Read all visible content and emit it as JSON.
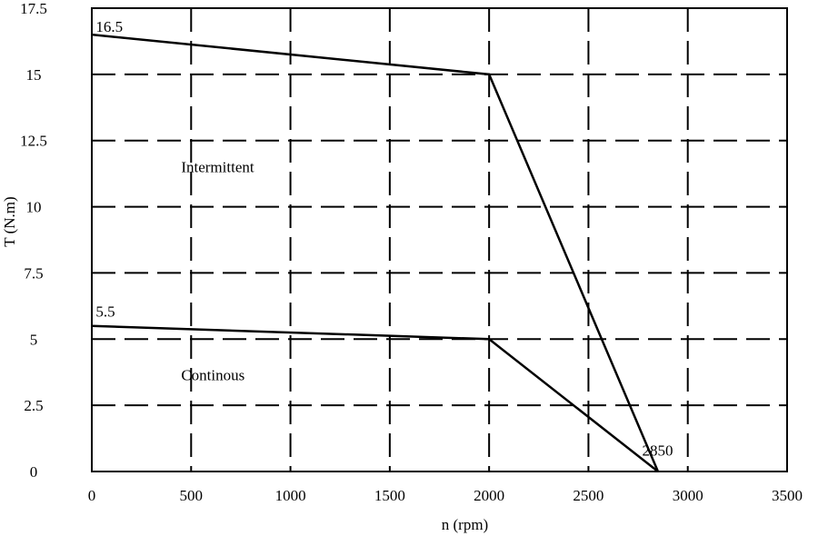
{
  "chart_data": {
    "type": "line",
    "title": "",
    "xlabel": "n (rpm)",
    "ylabel": "T (N.m)",
    "xlim": [
      0,
      3500
    ],
    "ylim": [
      0,
      17.5
    ],
    "x_ticks": [
      0,
      500,
      1000,
      1500,
      2000,
      2500,
      3000,
      3500
    ],
    "x_tick_labels": [
      "0",
      "500",
      "1000",
      "1500",
      "2000",
      "2500",
      "3000",
      "3500"
    ],
    "y_ticks": [
      0,
      2.5,
      5,
      7.5,
      10,
      12.5,
      15,
      17.5
    ],
    "y_tick_labels": [
      "0",
      "2.5",
      "5",
      "7.5",
      "10",
      "12.5",
      "15",
      "17.5"
    ],
    "grid": "dashed",
    "series": [
      {
        "name": "Intermittent",
        "x": [
          0,
          2000,
          2850
        ],
        "y": [
          16.5,
          15,
          0
        ]
      },
      {
        "name": "Continous",
        "x": [
          0,
          2000,
          2850
        ],
        "y": [
          5.5,
          5,
          0
        ]
      }
    ],
    "annotations": [
      {
        "text": "16.5",
        "x": 20,
        "y": 16.6
      },
      {
        "text": "5.5",
        "x": 20,
        "y": 5.85
      },
      {
        "text": "2850",
        "x": 2770,
        "y": 0.6
      },
      {
        "text": "Intermittent",
        "x": 450,
        "y": 11.3
      },
      {
        "text": "Continous",
        "x": 450,
        "y": 3.45
      }
    ],
    "line_color": "#000000"
  }
}
